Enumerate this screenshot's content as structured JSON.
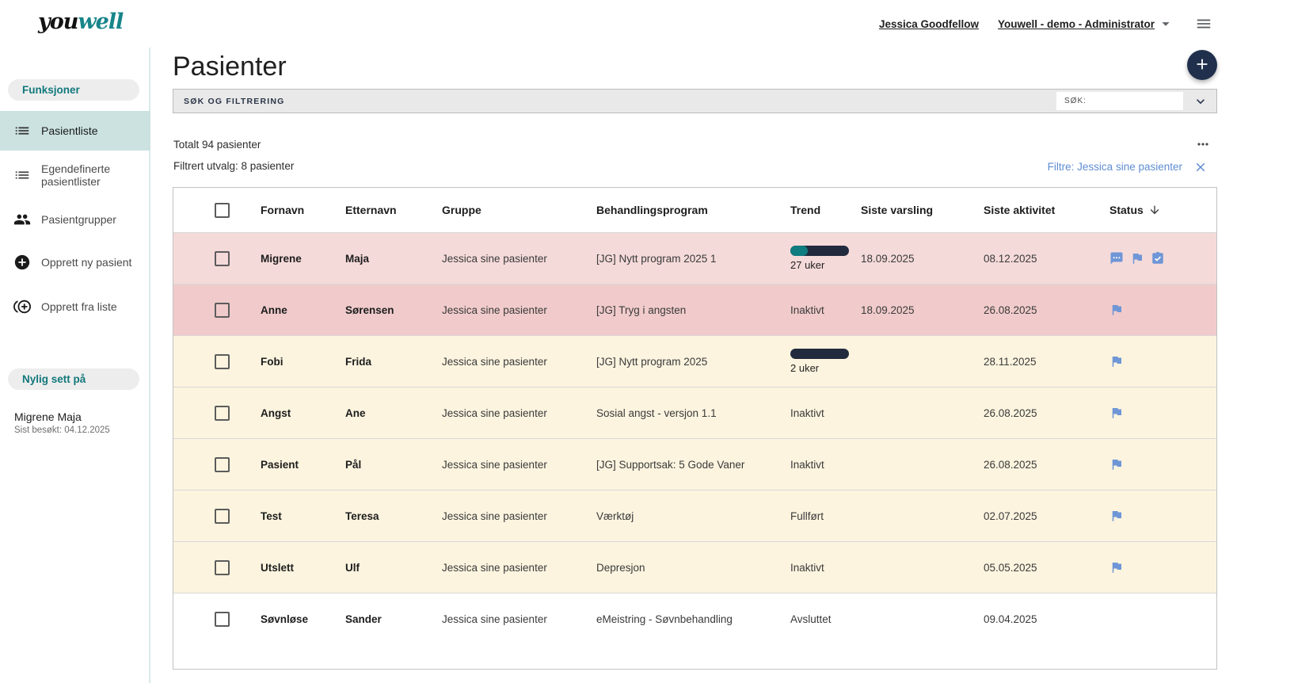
{
  "topbar": {
    "logo_you": "you",
    "logo_well": "well",
    "user_name": "Jessica Goodfellow",
    "tenant_role": "Youwell - demo - Administrator"
  },
  "sidebar": {
    "section_functions": "Funksjoner",
    "items": [
      {
        "label": "Pasientliste",
        "icon": "list-icon",
        "active": true
      },
      {
        "label": "Egendefinerte pasientlister",
        "icon": "list-icon",
        "active": false
      },
      {
        "label": "Pasientgrupper",
        "icon": "people-icon",
        "active": false
      },
      {
        "label": "Opprett ny pasient",
        "icon": "add-circle-icon",
        "active": false
      },
      {
        "label": "Opprett fra liste",
        "icon": "add-from-list-icon",
        "active": false
      }
    ],
    "section_recent": "Nylig sett på",
    "recent_name": "Migrene Maja",
    "recent_visited": "Sist besøkt: 04.12.2025"
  },
  "main": {
    "title": "Pasienter",
    "search_panel_label": "SØK OG FILTRERING",
    "search_field_label": "SØK:",
    "total_text": "Totalt 94 pasienter",
    "filtered_text": "Filtrert utvalg: 8 pasienter",
    "filter_chip_text": "Filtre: Jessica sine pasienter"
  },
  "table": {
    "columns": [
      "Fornavn",
      "Etternavn",
      "Gruppe",
      "Behandlingsprogram",
      "Trend",
      "Siste varsling",
      "Siste aktivitet",
      "Status"
    ],
    "sorted_column": "Status",
    "sort_direction": "desc",
    "rows": [
      {
        "fornavn": "Migrene",
        "etternavn": "Maja",
        "gruppe": "Jessica sine pasienter",
        "behandlingsprogram": "[JG] Nytt program 2025 1",
        "trend": {
          "kind": "bar",
          "label": "27 uker",
          "fill_ratio": 0.3
        },
        "siste_varsling": "18.09.2025",
        "siste_aktivitet": "08.12.2025",
        "status_icons": [
          "chat-icon",
          "flag-icon",
          "task-icon"
        ],
        "highlight": "pink"
      },
      {
        "fornavn": "Anne",
        "etternavn": "Sørensen",
        "gruppe": "Jessica sine pasienter",
        "behandlingsprogram": "[JG] Tryg i angsten",
        "trend": {
          "kind": "text",
          "label": "Inaktivt"
        },
        "siste_varsling": "18.09.2025",
        "siste_aktivitet": "26.08.2025",
        "status_icons": [
          "flag-icon"
        ],
        "highlight": "pink-dark"
      },
      {
        "fornavn": "Fobi",
        "etternavn": "Frida",
        "gruppe": "Jessica sine pasienter",
        "behandlingsprogram": "[JG] Nytt program 2025",
        "trend": {
          "kind": "bar",
          "label": "2 uker",
          "fill_ratio": 0
        },
        "siste_varsling": "",
        "siste_aktivitet": "28.11.2025",
        "status_icons": [
          "flag-icon"
        ],
        "highlight": "cream"
      },
      {
        "fornavn": "Angst",
        "etternavn": "Ane",
        "gruppe": "Jessica sine pasienter",
        "behandlingsprogram": "Sosial angst - versjon 1.1",
        "trend": {
          "kind": "text",
          "label": "Inaktivt"
        },
        "siste_varsling": "",
        "siste_aktivitet": "26.08.2025",
        "status_icons": [
          "flag-icon"
        ],
        "highlight": "cream"
      },
      {
        "fornavn": "Pasient",
        "etternavn": "Pål",
        "gruppe": "Jessica sine pasienter",
        "behandlingsprogram": "[JG] Supportsak: 5 Gode Vaner",
        "trend": {
          "kind": "text",
          "label": "Inaktivt"
        },
        "siste_varsling": "",
        "siste_aktivitet": "26.08.2025",
        "status_icons": [
          "flag-icon"
        ],
        "highlight": "cream"
      },
      {
        "fornavn": "Test",
        "etternavn": "Teresa",
        "gruppe": "Jessica sine pasienter",
        "behandlingsprogram": "Værktøj",
        "trend": {
          "kind": "text",
          "label": "Fullført"
        },
        "siste_varsling": "",
        "siste_aktivitet": "02.07.2025",
        "status_icons": [
          "flag-icon"
        ],
        "highlight": "cream"
      },
      {
        "fornavn": "Utslett",
        "etternavn": "Ulf",
        "gruppe": "Jessica sine pasienter",
        "behandlingsprogram": "Depresjon",
        "trend": {
          "kind": "text",
          "label": "Inaktivt"
        },
        "siste_varsling": "",
        "siste_aktivitet": "05.05.2025",
        "status_icons": [
          "flag-icon"
        ],
        "highlight": "cream"
      },
      {
        "fornavn": "Søvnløse",
        "etternavn": "Sander",
        "gruppe": "Jessica sine pasienter",
        "behandlingsprogram": "eMeistring - Søvnbehandling",
        "trend": {
          "kind": "text",
          "label": "Avsluttet"
        },
        "siste_varsling": "",
        "siste_aktivitet": "09.04.2025",
        "status_icons": [],
        "highlight": "none"
      }
    ]
  },
  "colors": {
    "brand_teal": "#17858a",
    "navy": "#20304c",
    "active_item_bg": "#cbe2e1",
    "row_pink": "#f5dada",
    "row_pink_dark": "#f1cbcb",
    "row_cream": "#fcf4df",
    "link_blue": "#5f8dd3",
    "status_icon_blue": "#6f96d6",
    "trend_bar_navy": "#222b3d",
    "trend_bar_teal": "#0f7c80"
  }
}
